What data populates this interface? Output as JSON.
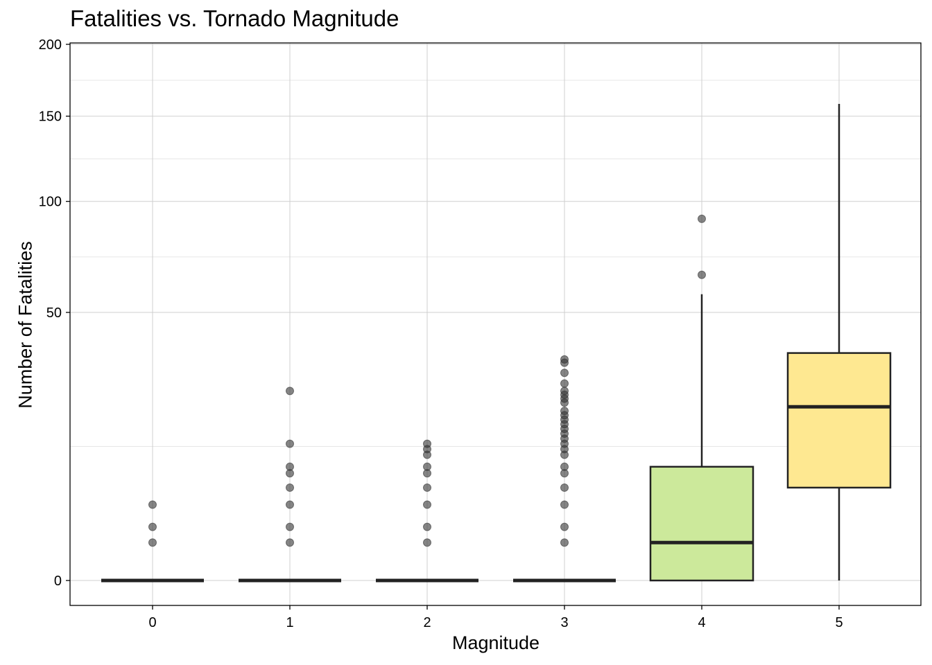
{
  "chart_data": {
    "type": "box",
    "title": "Fatalities vs. Tornado Magnitude",
    "xlabel": "Magnitude",
    "ylabel": "Number of Fatalities",
    "y_scale": "sqrt",
    "ylim": [
      0,
      200
    ],
    "y_ticks": [
      0,
      50,
      100,
      150,
      200
    ],
    "x_categories": [
      "0",
      "1",
      "2",
      "3",
      "4",
      "5"
    ],
    "grid": true,
    "outlier_color": "#333333",
    "boxes": [
      {
        "x": "0",
        "min": 0,
        "q1": 0,
        "median": 0,
        "q3": 0,
        "max": 0,
        "fill": "#ffffff",
        "outliers": [
          1,
          2,
          4
        ]
      },
      {
        "x": "1",
        "min": 0,
        "q1": 0,
        "median": 0,
        "q3": 0,
        "max": 0,
        "fill": "#ffffff",
        "outliers": [
          1,
          2,
          4,
          6,
          8,
          9,
          13,
          25
        ]
      },
      {
        "x": "2",
        "min": 0,
        "q1": 0,
        "median": 0,
        "q3": 0,
        "max": 0,
        "fill": "#ffffff",
        "outliers": [
          1,
          2,
          4,
          6,
          8,
          9,
          11,
          12,
          13
        ]
      },
      {
        "x": "3",
        "min": 0,
        "q1": 0,
        "median": 0,
        "q3": 0,
        "max": 0,
        "fill": "#ffffff",
        "outliers": [
          1,
          2,
          4,
          6,
          8,
          9,
          11,
          12,
          13,
          14,
          15,
          16,
          17,
          18,
          19,
          20,
          22,
          23,
          24,
          25,
          27,
          30,
          33,
          34
        ]
      },
      {
        "x": "4",
        "min": 0,
        "q1": 0,
        "median": 1,
        "q3": 9,
        "max": 57,
        "fill": "#cce99b",
        "outliers": [
          65,
          91
        ]
      },
      {
        "x": "5",
        "min": 0,
        "q1": 6,
        "median": 21,
        "q3": 36,
        "max": 158,
        "fill": "#fee891",
        "outliers": []
      }
    ]
  }
}
